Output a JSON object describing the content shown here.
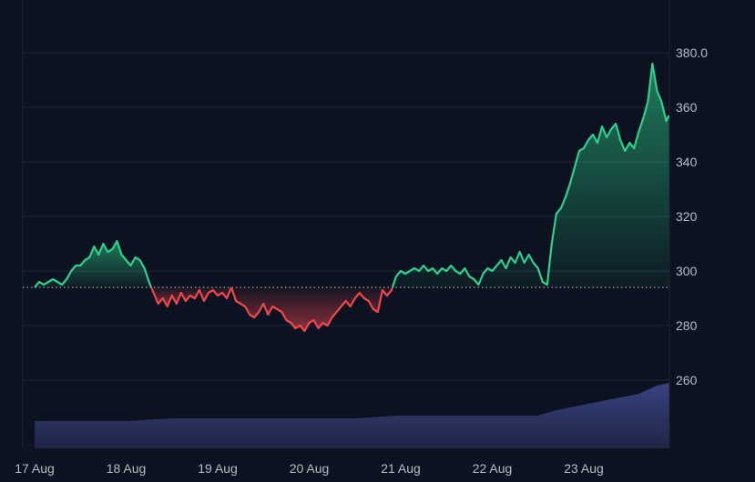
{
  "chart_data": {
    "type": "area",
    "x_ticks": [
      "17 Aug",
      "18 Aug",
      "19 Aug",
      "20 Aug",
      "21 Aug",
      "22 Aug",
      "23 Aug"
    ],
    "y_ticks": [
      "260",
      "280",
      "300",
      "320",
      "340",
      "360",
      "380.0"
    ],
    "ylim": [
      235,
      395
    ],
    "baseline": 294,
    "grid": true,
    "colors": {
      "up_line": "#2ed18b",
      "down_line": "#f0474d",
      "up_fill": "#1f8a5f",
      "down_fill": "#7a1f2a",
      "volume": "#2c3460",
      "grid": "#1e2738",
      "background": "#0c1220"
    },
    "series": [
      {
        "values": [
          [
            0.0,
            294
          ],
          [
            0.05,
            296
          ],
          [
            0.1,
            295
          ],
          [
            0.15,
            296
          ],
          [
            0.2,
            297
          ],
          [
            0.25,
            296
          ],
          [
            0.3,
            295
          ],
          [
            0.35,
            297
          ],
          [
            0.4,
            300
          ],
          [
            0.45,
            302
          ],
          [
            0.5,
            302
          ],
          [
            0.55,
            304
          ],
          [
            0.6,
            305
          ],
          [
            0.65,
            309
          ],
          [
            0.7,
            306
          ],
          [
            0.75,
            310
          ],
          [
            0.8,
            307
          ],
          [
            0.85,
            308
          ],
          [
            0.9,
            311
          ],
          [
            0.95,
            306
          ],
          [
            1.0,
            304
          ],
          [
            1.05,
            302
          ],
          [
            1.1,
            305
          ],
          [
            1.15,
            304
          ],
          [
            1.2,
            301
          ],
          [
            1.25,
            296
          ],
          [
            1.3,
            292
          ],
          [
            1.35,
            288
          ],
          [
            1.4,
            290
          ],
          [
            1.45,
            287
          ],
          [
            1.5,
            291
          ],
          [
            1.55,
            288
          ],
          [
            1.6,
            292
          ],
          [
            1.65,
            289
          ],
          [
            1.7,
            291
          ],
          [
            1.75,
            290
          ],
          [
            1.8,
            293
          ],
          [
            1.85,
            289
          ],
          [
            1.9,
            292
          ],
          [
            1.95,
            293
          ],
          [
            2.0,
            291
          ],
          [
            2.05,
            292
          ],
          [
            2.1,
            290
          ],
          [
            2.15,
            294
          ],
          [
            2.2,
            289
          ],
          [
            2.25,
            288
          ],
          [
            2.3,
            287
          ],
          [
            2.35,
            284
          ],
          [
            2.4,
            283
          ],
          [
            2.45,
            285
          ],
          [
            2.5,
            288
          ],
          [
            2.55,
            284
          ],
          [
            2.6,
            287
          ],
          [
            2.65,
            286
          ],
          [
            2.7,
            285
          ],
          [
            2.75,
            282
          ],
          [
            2.8,
            281
          ],
          [
            2.85,
            279
          ],
          [
            2.9,
            280
          ],
          [
            2.95,
            278
          ],
          [
            3.0,
            281
          ],
          [
            3.05,
            282
          ],
          [
            3.1,
            279
          ],
          [
            3.15,
            281
          ],
          [
            3.2,
            280
          ],
          [
            3.25,
            283
          ],
          [
            3.3,
            285
          ],
          [
            3.35,
            287
          ],
          [
            3.4,
            289
          ],
          [
            3.45,
            287
          ],
          [
            3.5,
            290
          ],
          [
            3.55,
            292
          ],
          [
            3.6,
            290
          ],
          [
            3.65,
            289
          ],
          [
            3.7,
            286
          ],
          [
            3.75,
            285
          ],
          [
            3.8,
            293
          ],
          [
            3.85,
            291
          ],
          [
            3.9,
            293
          ],
          [
            3.95,
            298
          ],
          [
            4.0,
            300
          ],
          [
            4.05,
            299
          ],
          [
            4.1,
            300
          ],
          [
            4.15,
            301
          ],
          [
            4.2,
            300
          ],
          [
            4.25,
            302
          ],
          [
            4.3,
            300
          ],
          [
            4.35,
            301
          ],
          [
            4.4,
            299
          ],
          [
            4.45,
            301
          ],
          [
            4.5,
            300
          ],
          [
            4.55,
            302
          ],
          [
            4.6,
            300
          ],
          [
            4.65,
            299
          ],
          [
            4.7,
            301
          ],
          [
            4.75,
            298
          ],
          [
            4.8,
            297
          ],
          [
            4.85,
            295
          ],
          [
            4.9,
            299
          ],
          [
            4.95,
            301
          ],
          [
            5.0,
            300
          ],
          [
            5.05,
            302
          ],
          [
            5.1,
            304
          ],
          [
            5.15,
            301
          ],
          [
            5.2,
            305
          ],
          [
            5.25,
            303
          ],
          [
            5.3,
            307
          ],
          [
            5.35,
            303
          ],
          [
            5.4,
            306
          ],
          [
            5.45,
            303
          ],
          [
            5.5,
            301
          ],
          [
            5.55,
            296
          ],
          [
            5.6,
            295
          ],
          [
            5.65,
            310
          ],
          [
            5.7,
            321
          ],
          [
            5.75,
            323
          ],
          [
            5.8,
            327
          ],
          [
            5.85,
            332
          ],
          [
            5.9,
            338
          ],
          [
            5.95,
            344
          ],
          [
            6.0,
            345
          ],
          [
            6.05,
            348
          ],
          [
            6.1,
            350
          ],
          [
            6.15,
            347
          ],
          [
            6.2,
            353
          ],
          [
            6.25,
            349
          ],
          [
            6.3,
            352
          ],
          [
            6.35,
            354
          ],
          [
            6.4,
            348
          ],
          [
            6.45,
            344
          ],
          [
            6.5,
            347
          ],
          [
            6.55,
            345
          ],
          [
            6.6,
            351
          ],
          [
            6.65,
            356
          ],
          [
            6.7,
            362
          ],
          [
            6.75,
            376
          ],
          [
            6.8,
            366
          ],
          [
            6.85,
            362
          ],
          [
            6.9,
            355
          ],
          [
            6.93,
            357
          ]
        ]
      },
      {
        "name": "",
        "values": [
          [
            0.0,
            245
          ],
          [
            0.5,
            245
          ],
          [
            1.0,
            245
          ],
          [
            1.5,
            246
          ],
          [
            2.0,
            246
          ],
          [
            2.5,
            246
          ],
          [
            3.0,
            246
          ],
          [
            3.5,
            246
          ],
          [
            4.0,
            247
          ],
          [
            4.5,
            247
          ],
          [
            5.0,
            247
          ],
          [
            5.5,
            247
          ],
          [
            5.7,
            249
          ],
          [
            6.0,
            251
          ],
          [
            6.3,
            253
          ],
          [
            6.6,
            255
          ],
          [
            6.8,
            258
          ],
          [
            6.93,
            259
          ]
        ]
      }
    ]
  }
}
